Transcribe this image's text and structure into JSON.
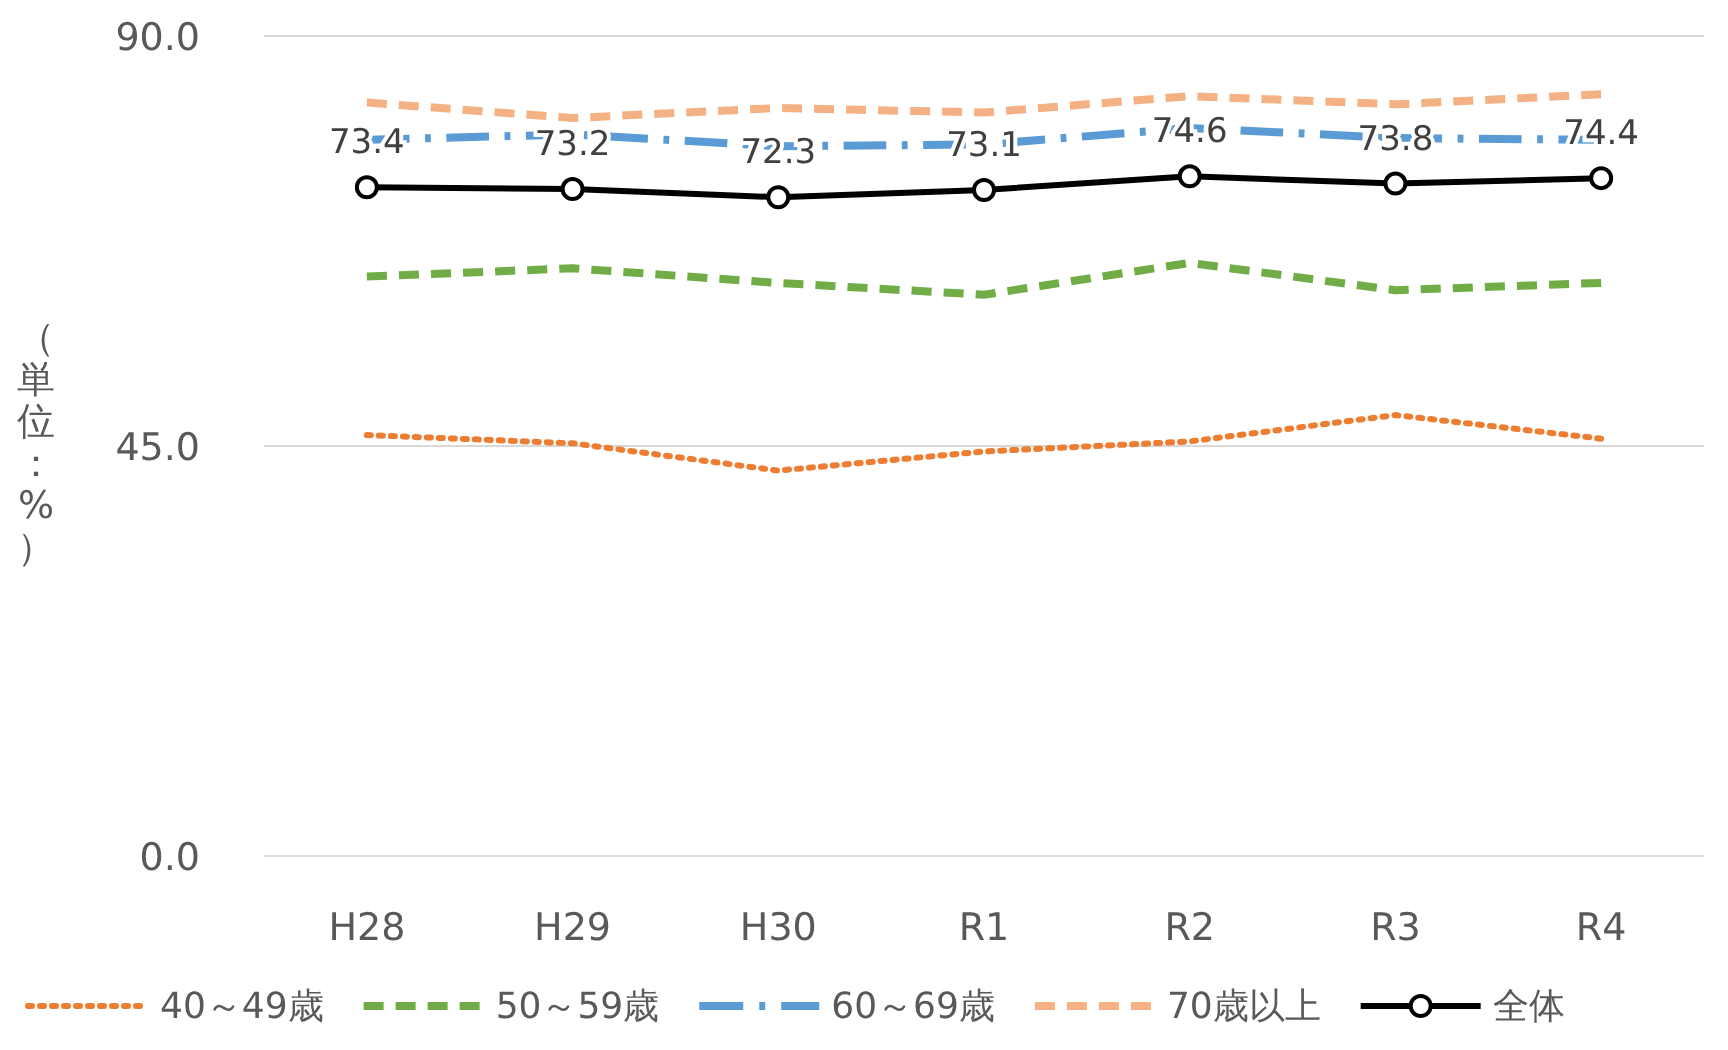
{
  "chart_data": {
    "type": "line",
    "ylabel": "（単位：%）",
    "categories": [
      "H28",
      "H29",
      "H30",
      "R1",
      "R2",
      "R3",
      "R4"
    ],
    "ylim": [
      0,
      90
    ],
    "yticks": [
      {
        "value": 0,
        "label": "0.0"
      },
      {
        "value": 45,
        "label": "45.0"
      },
      {
        "value": 90,
        "label": "90.0"
      }
    ],
    "grid": "y",
    "legend": "bottom",
    "series": [
      {
        "name": "40～49歳",
        "color": "#ed7d31",
        "line_style": "dotted",
        "marker": "none",
        "values": [
          46.2,
          45.3,
          42.3,
          44.4,
          45.5,
          48.4,
          45.8
        ]
      },
      {
        "name": "50～59歳",
        "color": "#70ad47",
        "line_style": "dashed",
        "marker": "none",
        "values": [
          63.6,
          64.5,
          62.9,
          61.6,
          65.1,
          62.1,
          62.9
        ]
      },
      {
        "name": "60～69歳",
        "color": "#5b9bd5",
        "line_style": "dashdot",
        "marker": "none",
        "values": [
          78.6,
          79.2,
          77.9,
          78.1,
          79.9,
          78.8,
          78.6
        ]
      },
      {
        "name": "70歳以上",
        "color": "#f4b183",
        "line_style": "dashed",
        "marker": "none",
        "values": [
          82.7,
          81.0,
          82.1,
          81.6,
          83.4,
          82.5,
          83.6
        ]
      },
      {
        "name": "全体",
        "color": "#000000",
        "line_style": "solid",
        "marker": "circle",
        "values": [
          73.4,
          73.2,
          72.3,
          73.1,
          74.6,
          73.8,
          74.4
        ],
        "value_labels": [
          "73.4",
          "73.2",
          "72.3",
          "73.1",
          "74.6",
          "73.8",
          "74.4"
        ]
      }
    ]
  }
}
